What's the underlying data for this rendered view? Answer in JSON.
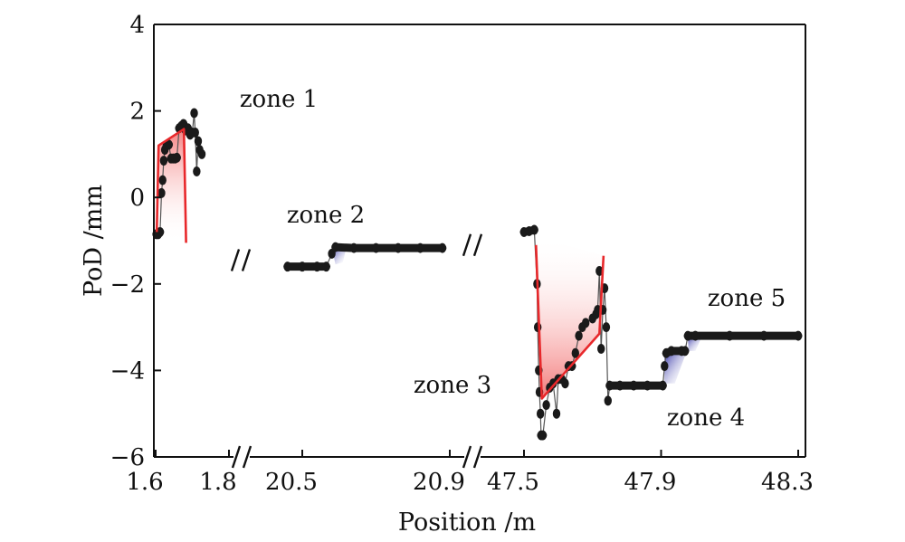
{
  "chart_data": {
    "type": "scatter",
    "xlabel": "Position /m",
    "ylabel": "PoD /mm",
    "ylim": [
      -6,
      4
    ],
    "yticks": [
      4,
      2,
      0,
      -2,
      -4,
      -6
    ],
    "tick_text": {
      "y": [
        "4",
        "2",
        "0",
        "−2",
        "−4",
        "−6"
      ],
      "x": [
        "1.6",
        "1.8",
        "20.5",
        "20.9",
        "47.5",
        "47.9",
        "48.3"
      ]
    },
    "x_axis_breaks": [
      "1.8|20.5",
      "20.9|47.5"
    ],
    "x_segments": [
      {
        "range": [
          1.6,
          1.8
        ],
        "ticks": [
          "1.6",
          "1.8"
        ]
      },
      {
        "range": [
          20.45,
          20.9
        ],
        "ticks": [
          "20.5",
          "20.9"
        ]
      },
      {
        "range": [
          47.5,
          48.3
        ],
        "ticks": [
          "47.5",
          "47.9",
          "48.3"
        ]
      }
    ],
    "colors": {
      "points": "#1a1a1a",
      "fit_line": "#e8282b",
      "fill_red": "#f08080",
      "fill_blue": "#2525a0"
    },
    "series": [
      {
        "segment": 0,
        "points": [
          [
            1.602,
            -0.85
          ],
          [
            1.607,
            -0.85
          ],
          [
            1.612,
            -0.8
          ],
          [
            1.616,
            0.1
          ],
          [
            1.619,
            0.4
          ],
          [
            1.622,
            0.85
          ],
          [
            1.625,
            1.1
          ],
          [
            1.63,
            1.2
          ],
          [
            1.636,
            1.22
          ],
          [
            1.642,
            0.9
          ],
          [
            1.648,
            0.9
          ],
          [
            1.653,
            0.9
          ],
          [
            1.658,
            0.92
          ],
          [
            1.664,
            1.6
          ],
          [
            1.67,
            1.65
          ],
          [
            1.676,
            1.7
          ],
          [
            1.682,
            1.55
          ],
          [
            1.688,
            1.6
          ],
          [
            1.694,
            1.45
          ],
          [
            1.7,
            1.5
          ],
          [
            1.705,
            1.95
          ],
          [
            1.708,
            1.5
          ],
          [
            1.712,
            0.6
          ],
          [
            1.716,
            1.3
          ],
          [
            1.72,
            1.1
          ],
          [
            1.726,
            1.0
          ]
        ]
      },
      {
        "segment": 1,
        "points": [
          [
            20.46,
            -1.6
          ],
          [
            20.5,
            -1.6
          ],
          [
            20.54,
            -1.6
          ],
          [
            20.565,
            -1.6
          ],
          [
            20.58,
            -1.3
          ],
          [
            20.59,
            -1.15
          ],
          [
            20.64,
            -1.17
          ],
          [
            20.7,
            -1.17
          ],
          [
            20.76,
            -1.17
          ],
          [
            20.82,
            -1.17
          ],
          [
            20.88,
            -1.17
          ]
        ]
      },
      {
        "segment": 2,
        "points": [
          [
            47.5,
            -0.8
          ],
          [
            47.515,
            -0.78
          ],
          [
            47.53,
            -0.75
          ],
          [
            47.538,
            -2.0
          ],
          [
            47.54,
            -3.0
          ],
          [
            47.543,
            -4.0
          ],
          [
            47.545,
            -4.5
          ],
          [
            47.548,
            -5.0
          ],
          [
            47.55,
            -5.5
          ],
          [
            47.555,
            -5.5
          ],
          [
            47.565,
            -4.8
          ],
          [
            47.575,
            -4.4
          ],
          [
            47.585,
            -4.3
          ],
          [
            47.595,
            -5.0
          ],
          [
            47.6,
            -4.2
          ],
          [
            47.61,
            -4.2
          ],
          [
            47.62,
            -4.3
          ],
          [
            47.63,
            -3.9
          ],
          [
            47.64,
            -3.9
          ],
          [
            47.65,
            -3.6
          ],
          [
            47.66,
            -3.2
          ],
          [
            47.67,
            -3.0
          ],
          [
            47.68,
            -2.9
          ],
          [
            47.7,
            -2.8
          ],
          [
            47.71,
            -2.7
          ],
          [
            47.715,
            -2.6
          ],
          [
            47.72,
            -1.7
          ],
          [
            47.725,
            -3.5
          ],
          [
            47.73,
            -2.6
          ],
          [
            47.735,
            -2.1
          ],
          [
            47.74,
            -3.0
          ],
          [
            47.745,
            -4.7
          ],
          [
            47.75,
            -4.35
          ],
          [
            47.78,
            -4.35
          ],
          [
            47.82,
            -4.35
          ],
          [
            47.86,
            -4.35
          ],
          [
            47.905,
            -4.35
          ],
          [
            47.91,
            -3.9
          ],
          [
            47.915,
            -3.6
          ],
          [
            47.93,
            -3.55
          ],
          [
            47.96,
            -3.55
          ],
          [
            47.97,
            -3.55
          ],
          [
            47.978,
            -3.2
          ],
          [
            48.0,
            -3.2
          ],
          [
            48.1,
            -3.2
          ],
          [
            48.2,
            -3.2
          ],
          [
            48.3,
            -3.2
          ]
        ]
      }
    ],
    "fit_lines": [
      {
        "segment": 0,
        "points": [
          [
            1.603,
            -0.8
          ],
          [
            1.608,
            1.2
          ],
          [
            1.677,
            1.58
          ],
          [
            1.683,
            -1.05
          ]
        ]
      },
      {
        "segment": 2,
        "points": [
          [
            47.535,
            -1.1
          ],
          [
            47.552,
            -4.65
          ],
          [
            47.72,
            -3.15
          ],
          [
            47.732,
            -1.35
          ]
        ]
      }
    ],
    "zone_labels": [
      {
        "text": "zone 1"
      },
      {
        "text": "zone 2"
      },
      {
        "text": "zone 3"
      },
      {
        "text": "zone 4"
      },
      {
        "text": "zone 5"
      }
    ]
  }
}
